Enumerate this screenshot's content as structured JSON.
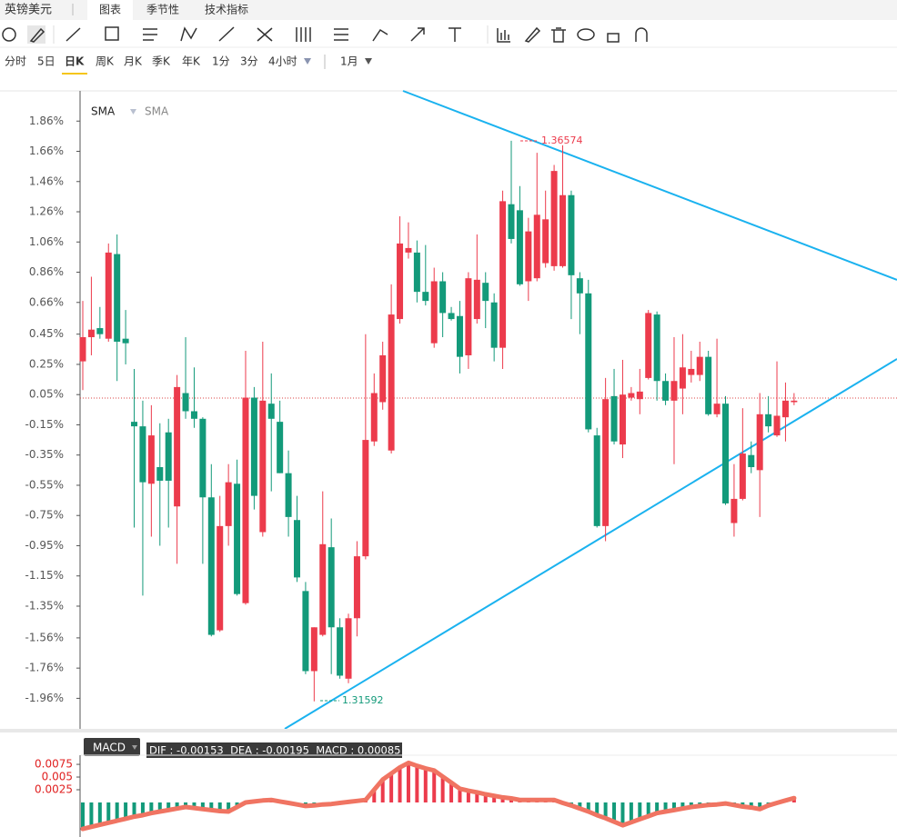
{
  "header": {
    "title": "英镑美元",
    "tabs": [
      "图表",
      "季节性",
      "技术指标"
    ]
  },
  "periods": [
    "分时",
    "5日",
    "日K",
    "周K",
    "月K",
    "季K",
    "年K",
    "1分",
    "3分",
    "4小时"
  ],
  "period_extra": "1月",
  "chart_data": [
    {
      "type": "candlestick",
      "legend": [
        "SMA",
        "SMA"
      ],
      "open": [
        0.27,
        0.43,
        0.49,
        0.42,
        0.98,
        0.42,
        -0.13,
        -0.16,
        -0.54,
        -0.43,
        -0.2,
        -0.69,
        0.06,
        -0.06,
        -0.11,
        -0.63,
        -1.51,
        -0.82,
        -0.54,
        -1.33,
        0.03,
        -0.86,
        -0.01,
        -0.13,
        -0.47,
        -0.78,
        -1.25,
        -1.78,
        -1.54,
        -0.96,
        -1.49,
        -1.83,
        -1.43,
        -1.02,
        -0.26,
        0.0,
        -0.32,
        0.55,
        0.99,
        0.99,
        0.73,
        0.39,
        0.8,
        0.59,
        0.57,
        0.31,
        0.55,
        0.79,
        0.66,
        0.36,
        1.31,
        1.27,
        0.8,
        0.82,
        0.92,
        0.9,
        0.9,
        1.37,
        0.82,
        0.72,
        -0.22,
        -0.82,
        0.04,
        -0.28,
        0.03,
        0.02,
        0.16,
        0.58,
        0.14,
        0.01,
        0.09,
        0.18,
        0.18,
        0.3,
        -0.08,
        -0.01,
        -0.8,
        -0.64,
        -0.35,
        -0.45,
        -0.08,
        -0.22,
        -0.1,
        0.0
      ],
      "high": [
        0.67,
        0.83,
        0.63,
        1.05,
        1.11,
        0.61,
        0.22,
        0.01,
        -0.02,
        -0.14,
        -0.11,
        0.18,
        0.43,
        0.23,
        -0.1,
        -0.41,
        -0.62,
        -0.41,
        -0.38,
        0.34,
        0.1,
        0.4,
        0.19,
        0.01,
        -0.32,
        -0.62,
        -1.19,
        -1.49,
        -0.59,
        -0.77,
        -1.43,
        -1.4,
        -0.92,
        0.45,
        0.19,
        0.4,
        0.78,
        1.23,
        1.19,
        1.07,
        1.04,
        0.89,
        0.86,
        0.63,
        0.67,
        0.86,
        1.11,
        0.86,
        0.72,
        1.4,
        1.73,
        1.43,
        1.22,
        1.65,
        1.4,
        1.57,
        1.7,
        1.4,
        0.86,
        0.81,
        -0.17,
        0.16,
        0.22,
        0.28,
        0.1,
        0.22,
        0.61,
        0.6,
        0.19,
        0.43,
        0.45,
        0.34,
        0.4,
        0.34,
        0.42,
        0.04,
        -0.41,
        -0.04,
        -0.26,
        0.06,
        0.04,
        0.27,
        0.13,
        0.06
      ],
      "low": [
        0.08,
        0.31,
        0.42,
        0.4,
        0.14,
        0.25,
        -0.83,
        -1.28,
        -0.89,
        -0.95,
        -0.83,
        -1.07,
        -0.11,
        -0.17,
        -1.07,
        -1.55,
        -1.52,
        -0.95,
        -1.28,
        -1.34,
        -0.71,
        -0.89,
        -0.59,
        -0.47,
        -0.89,
        -1.19,
        -1.8,
        -1.98,
        -1.55,
        -1.8,
        -1.83,
        -1.86,
        -1.55,
        -1.04,
        -0.29,
        -0.05,
        -0.34,
        0.52,
        0.95,
        0.66,
        0.64,
        0.36,
        0.43,
        0.54,
        0.19,
        0.22,
        0.52,
        0.49,
        0.27,
        0.22,
        1.05,
        0.77,
        0.67,
        0.8,
        0.89,
        0.87,
        0.89,
        0.55,
        0.45,
        -0.2,
        -0.83,
        -0.92,
        -0.28,
        -0.37,
        0.01,
        -0.08,
        0.15,
        0.01,
        -0.02,
        -0.41,
        -0.08,
        0.13,
        0.14,
        -0.09,
        -0.1,
        -0.68,
        -0.89,
        -0.65,
        -0.47,
        -0.76,
        -0.2,
        -0.23,
        -0.26,
        -0.02
      ],
      "close": [
        0.43,
        0.48,
        0.45,
        0.99,
        0.4,
        0.39,
        -0.16,
        -0.53,
        -0.22,
        -0.52,
        -0.52,
        0.1,
        -0.06,
        -0.11,
        -0.63,
        -1.54,
        -0.82,
        -0.53,
        -1.27,
        0.03,
        -0.62,
        0.01,
        -0.11,
        -0.47,
        -0.76,
        -1.16,
        -1.78,
        -1.49,
        -0.94,
        -1.49,
        -1.81,
        -1.43,
        -1.02,
        -0.25,
        0.06,
        0.31,
        0.58,
        1.05,
        1.02,
        0.73,
        0.67,
        0.8,
        0.59,
        0.55,
        0.3,
        0.82,
        0.81,
        0.67,
        0.36,
        1.33,
        1.08,
        0.78,
        1.13,
        1.24,
        1.21,
        1.53,
        1.37,
        0.84,
        0.72,
        -0.18,
        -0.82,
        0.02,
        -0.26,
        0.05,
        0.06,
        0.07,
        0.59,
        0.14,
        0.01,
        0.14,
        0.23,
        0.22,
        0.3,
        -0.08,
        -0.01,
        -0.67,
        -0.64,
        -0.34,
        -0.43,
        -0.08,
        -0.16,
        -0.09,
        0.01,
        0.01
      ],
      "ylim": [
        -2.15,
        2.06
      ],
      "yticks": [
        {
          "value": 1.86,
          "label": "1.86%"
        },
        {
          "value": 1.66,
          "label": "1.66%"
        },
        {
          "value": 1.46,
          "label": "1.46%"
        },
        {
          "value": 1.26,
          "label": "1.26%"
        },
        {
          "value": 1.06,
          "label": "1.06%"
        },
        {
          "value": 0.86,
          "label": "0.86%"
        },
        {
          "value": 0.66,
          "label": "0.66%"
        },
        {
          "value": 0.45,
          "label": "0.45%"
        },
        {
          "value": 0.25,
          "label": "0.25%"
        },
        {
          "value": 0.05,
          "label": "0.05%"
        },
        {
          "value": -0.15,
          "label": "-0.15%"
        },
        {
          "value": -0.35,
          "label": "-0.35%"
        },
        {
          "value": -0.55,
          "label": "-0.55%"
        },
        {
          "value": -0.75,
          "label": "-0.75%"
        },
        {
          "value": -0.95,
          "label": "-0.95%"
        },
        {
          "value": -1.15,
          "label": "-1.15%"
        },
        {
          "value": -1.35,
          "label": "-1.35%"
        },
        {
          "value": -1.56,
          "label": "-1.56%"
        },
        {
          "value": -1.76,
          "label": "-1.76%"
        },
        {
          "value": -1.96,
          "label": "-1.96%"
        }
      ],
      "up_color": "#ec3b4c",
      "down_color": "#139a7a",
      "annotations": [
        {
          "text": "1.36574"
        },
        {
          "text": "1.31592"
        }
      ]
    },
    {
      "type": "bar",
      "title": "MACD",
      "subtitle": "DIF : -0.00153  DEA : -0.00195  MACD : 0.00085",
      "values": [
        -0.0052,
        -0.0048,
        -0.0044,
        -0.004,
        -0.0036,
        -0.0032,
        -0.0028,
        -0.0025,
        -0.0021,
        -0.0018,
        -0.0015,
        -0.0012,
        -0.0009,
        -0.0011,
        -0.0013,
        -0.0015,
        -0.0017,
        -0.0018,
        -0.0009,
        0,
        0.0002,
        0.0004,
        0.0005,
        0.0002,
        -0.0001,
        -0.0004,
        -0.0007,
        -0.0006,
        -0.0004,
        -0.0003,
        -0.0001,
        0.0001,
        0.0003,
        0.0005,
        0.0025,
        0.0045,
        0.0057,
        0.0069,
        0.0078,
        0.0072,
        0.0067,
        0.0063,
        0.0051,
        0.0039,
        0.0027,
        0.0023,
        0.002,
        0.0016,
        0.0013,
        0.001,
        0.0008,
        0.0005,
        0.0005,
        0.0005,
        0.0005,
        0.0005,
        -0.0001,
        -0.0006,
        -0.0012,
        -0.0018,
        -0.0025,
        -0.0031,
        -0.0038,
        -0.0045,
        -0.0039,
        -0.0033,
        -0.0027,
        -0.0021,
        -0.0018,
        -0.0015,
        -0.0012,
        -0.0009,
        -0.0007,
        -0.0005,
        -0.0004,
        -0.0002,
        -0.0005,
        -0.0008,
        -0.001,
        -0.0013,
        -0.0006,
        -0.0001,
        0.0004,
        0.00085
      ],
      "ylim": [
        -0.0068,
        0.0093
      ],
      "yticks": [
        0.0075,
        0.005,
        0.0025
      ],
      "up_color": "#ec3b4c",
      "down_color": "#139a7a",
      "line_color": "#f07462"
    }
  ]
}
